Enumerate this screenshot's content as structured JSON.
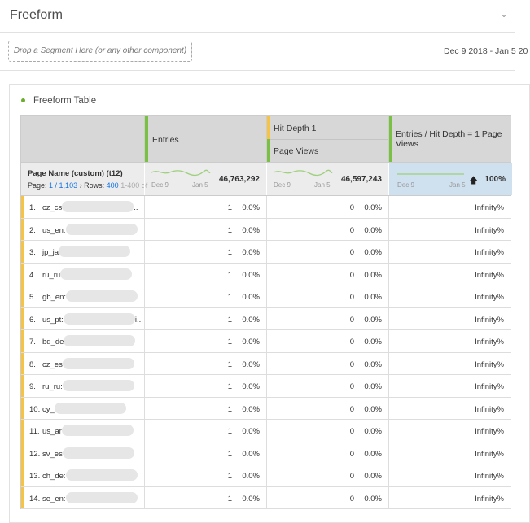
{
  "header": {
    "title": "Freeform",
    "collapse_icon": "chevron-down-icon"
  },
  "segment_bar": {
    "drop_placeholder": "Drop a Segment Here (or any other component)",
    "date_range": "Dec 9 2018 - Jan 5 20"
  },
  "panel": {
    "title": "Freeform Table",
    "status_color": "#6aaf2b"
  },
  "table": {
    "columns": [
      {
        "label": "Entries",
        "color": "#7ac143"
      },
      {
        "label": "Hit Depth 1",
        "sub_label": "Page Views",
        "color": "#f6c343"
      },
      {
        "label": "Entries / Hit Depth = 1 Page Views",
        "color": "#7ac143"
      }
    ],
    "dimension": {
      "label": "Page Name (custom) (t12)",
      "page_label": "Page:",
      "page": "1 / 1,103",
      "rows_label": "Rows:",
      "rows": "400",
      "range": "1-400 of"
    },
    "summary": {
      "spark_start": "Dec 9",
      "spark_end": "Jan 5",
      "entries_total": "46,763,292",
      "pageviews_total": "46,597,243",
      "ratio_total": "100%",
      "ratio_icon": "arrow-up-icon"
    },
    "rows": [
      {
        "n": "1.",
        "name": "cz_cs",
        "suffix": "..",
        "entries": "1",
        "entries_pct": "0.0%",
        "pv": "0",
        "pv_pct": "0.0%",
        "ratio": "Infinity%"
      },
      {
        "n": "2.",
        "name": "us_en:",
        "suffix": "",
        "entries": "1",
        "entries_pct": "0.0%",
        "pv": "0",
        "pv_pct": "0.0%",
        "ratio": "Infinity%"
      },
      {
        "n": "3.",
        "name": "jp_ja",
        "suffix": "",
        "entries": "1",
        "entries_pct": "0.0%",
        "pv": "0",
        "pv_pct": "0.0%",
        "ratio": "Infinity%"
      },
      {
        "n": "4.",
        "name": "ru_ru",
        "suffix": "",
        "entries": "1",
        "entries_pct": "0.0%",
        "pv": "0",
        "pv_pct": "0.0%",
        "ratio": "Infinity%"
      },
      {
        "n": "5.",
        "name": "gb_en:",
        "suffix": "...",
        "entries": "1",
        "entries_pct": "0.0%",
        "pv": "0",
        "pv_pct": "0.0%",
        "ratio": "Infinity%"
      },
      {
        "n": "6.",
        "name": "us_pt:",
        "suffix": "i...",
        "entries": "1",
        "entries_pct": "0.0%",
        "pv": "0",
        "pv_pct": "0.0%",
        "ratio": "Infinity%"
      },
      {
        "n": "7.",
        "name": "bd_de",
        "suffix": "",
        "entries": "1",
        "entries_pct": "0.0%",
        "pv": "0",
        "pv_pct": "0.0%",
        "ratio": "Infinity%"
      },
      {
        "n": "8.",
        "name": "cz_es",
        "suffix": "",
        "entries": "1",
        "entries_pct": "0.0%",
        "pv": "0",
        "pv_pct": "0.0%",
        "ratio": "Infinity%"
      },
      {
        "n": "9.",
        "name": "ru_ru:",
        "suffix": "",
        "entries": "1",
        "entries_pct": "0.0%",
        "pv": "0",
        "pv_pct": "0.0%",
        "ratio": "Infinity%"
      },
      {
        "n": "10.",
        "name": "cy_",
        "suffix": "",
        "entries": "1",
        "entries_pct": "0.0%",
        "pv": "0",
        "pv_pct": "0.0%",
        "ratio": "Infinity%"
      },
      {
        "n": "11.",
        "name": "us_ar",
        "suffix": "",
        "entries": "1",
        "entries_pct": "0.0%",
        "pv": "0",
        "pv_pct": "0.0%",
        "ratio": "Infinity%"
      },
      {
        "n": "12.",
        "name": "sv_es",
        "suffix": "",
        "entries": "1",
        "entries_pct": "0.0%",
        "pv": "0",
        "pv_pct": "0.0%",
        "ratio": "Infinity%"
      },
      {
        "n": "13.",
        "name": "ch_de:",
        "suffix": "",
        "entries": "1",
        "entries_pct": "0.0%",
        "pv": "0",
        "pv_pct": "0.0%",
        "ratio": "Infinity%"
      },
      {
        "n": "14.",
        "name": "se_en:",
        "suffix": "",
        "entries": "1",
        "entries_pct": "0.0%",
        "pv": "0",
        "pv_pct": "0.0%",
        "ratio": "Infinity%"
      }
    ]
  }
}
